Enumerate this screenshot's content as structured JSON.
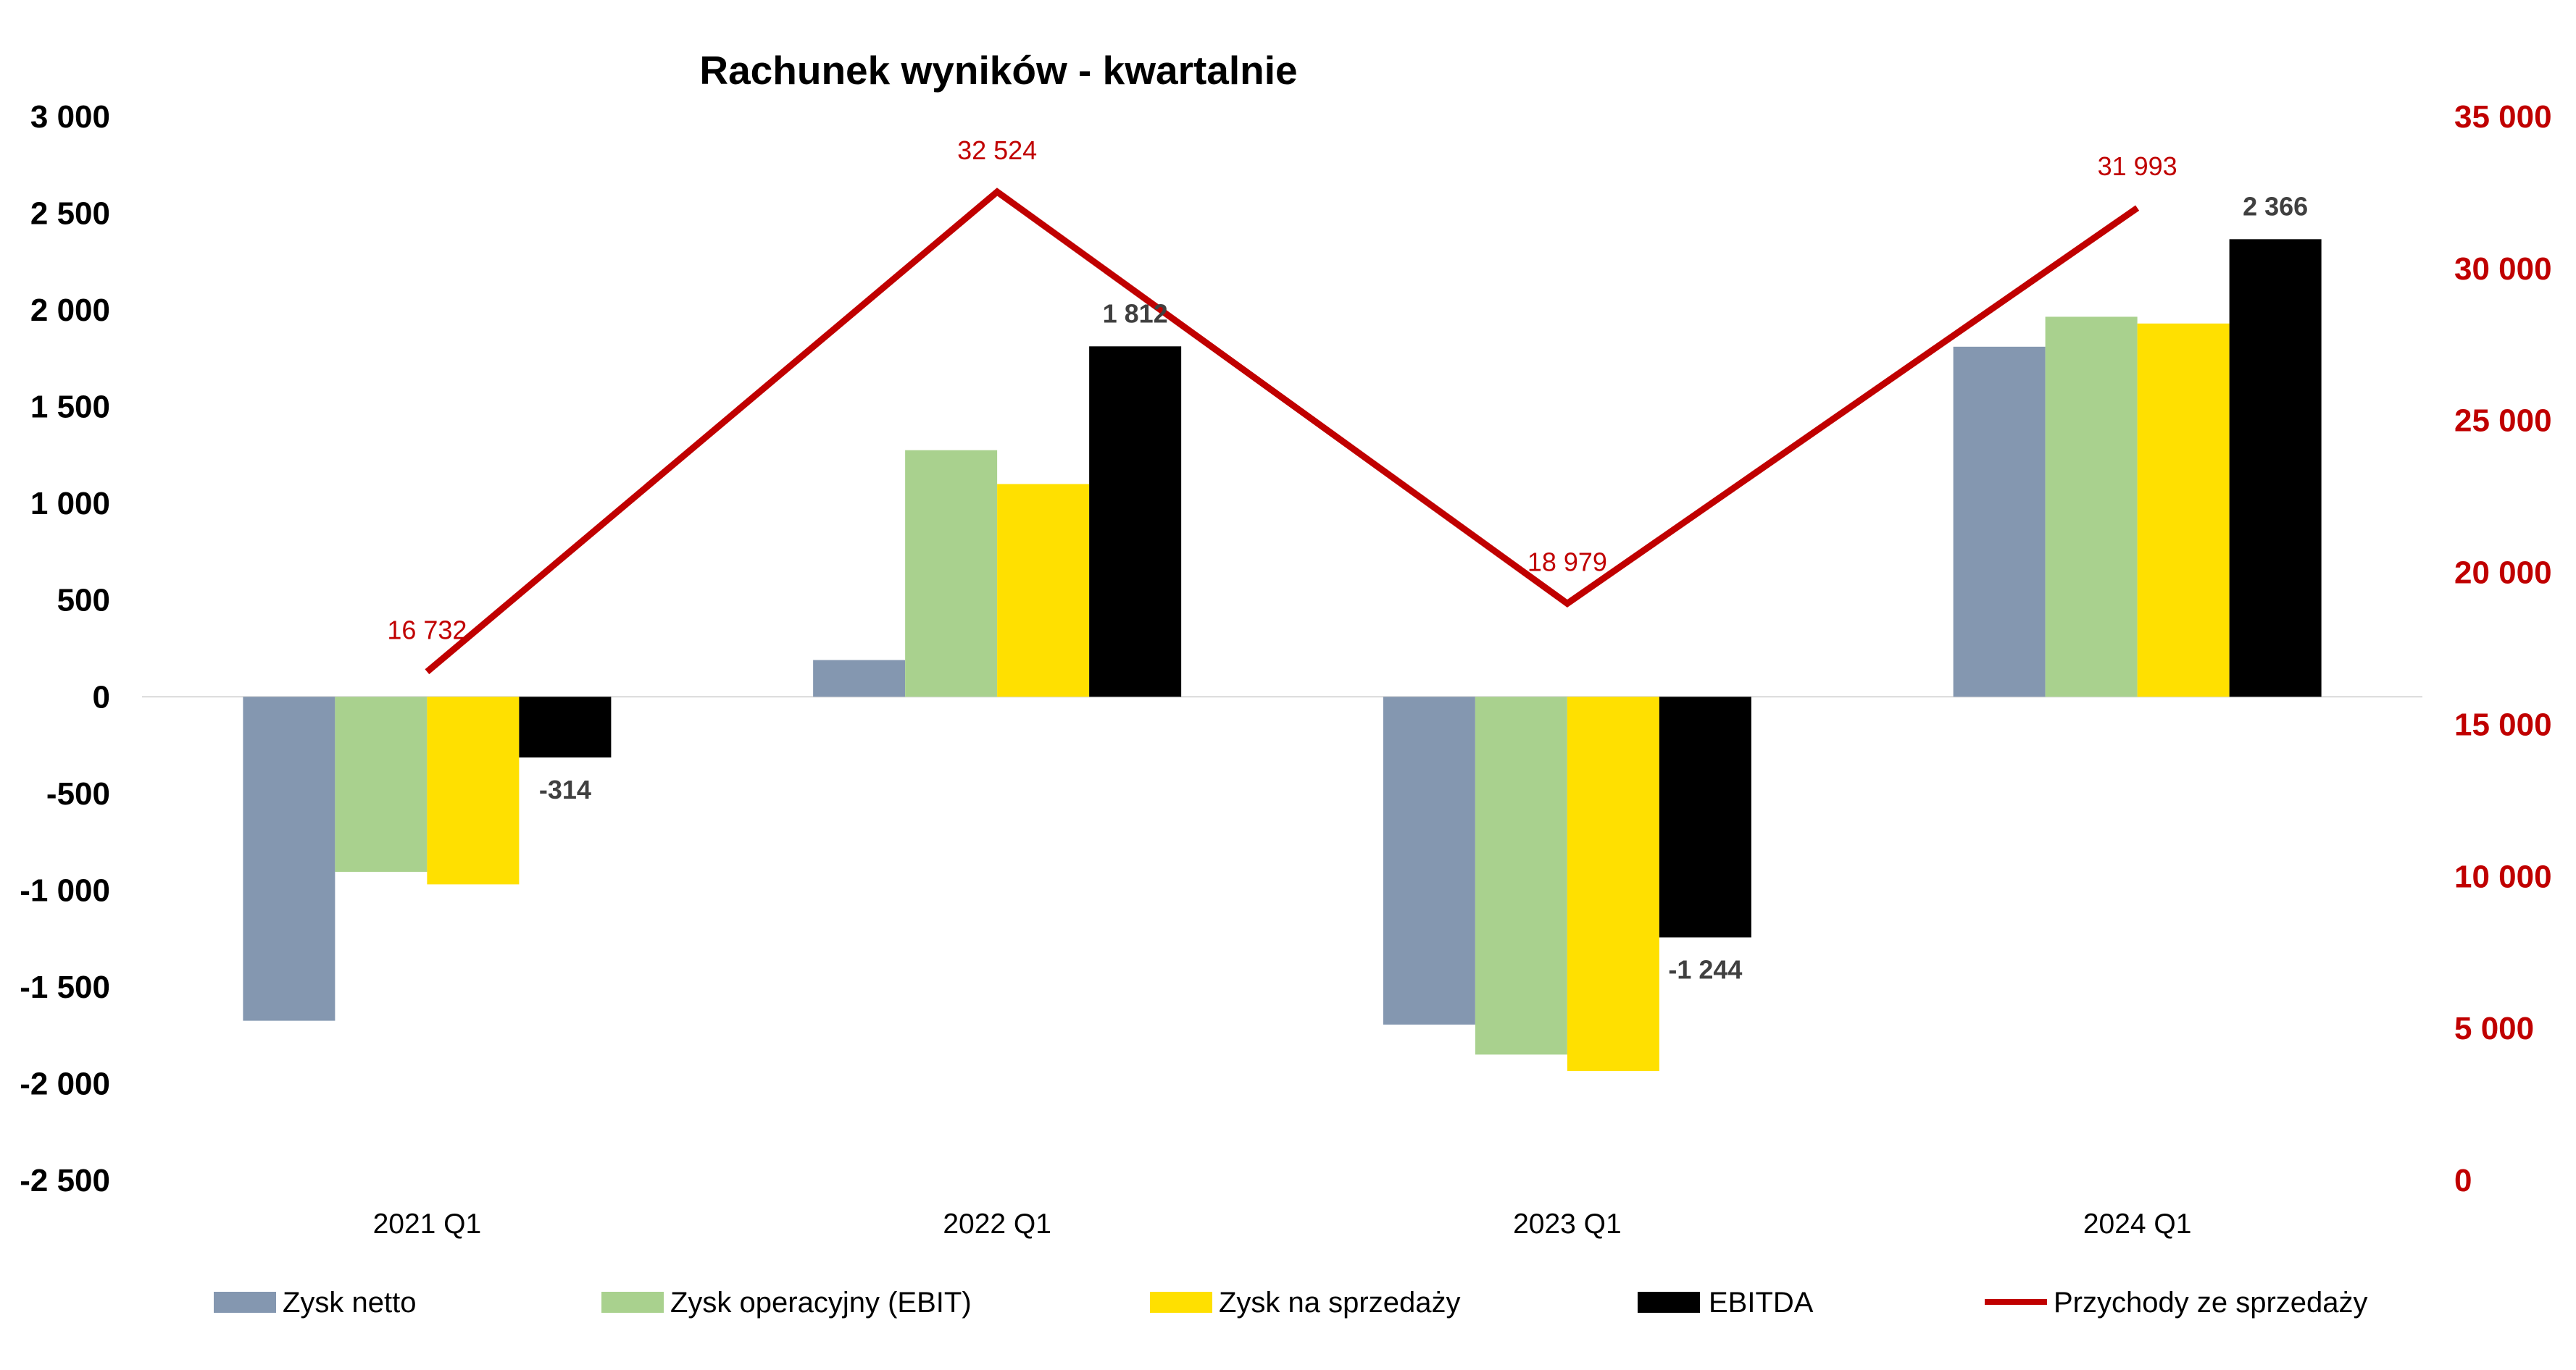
{
  "chart_data": {
    "type": "bar",
    "title": "Rachunek wyników - kwartalnie",
    "categories": [
      "2021 Q1",
      "2022 Q1",
      "2023 Q1",
      "2024 Q1"
    ],
    "series": [
      {
        "name": "Zysk netto",
        "type": "bar",
        "axis": "left",
        "color": "#8497B0",
        "values": [
          -1675,
          190,
          -1695,
          1810
        ]
      },
      {
        "name": "Zysk operacyjny (EBIT)",
        "type": "bar",
        "axis": "left",
        "color": "#A9D18E",
        "values": [
          -905,
          1275,
          -1850,
          1965
        ]
      },
      {
        "name": "Zysk na sprzedaży",
        "type": "bar",
        "axis": "left",
        "color": "#FFE000",
        "values": [
          -970,
          1100,
          -1935,
          1930
        ]
      },
      {
        "name": "EBITDA",
        "type": "bar",
        "axis": "left",
        "color": "#000000",
        "label_color": "#404040",
        "values": [
          -314,
          1812,
          -1244,
          2366
        ],
        "data_labels": [
          "-314",
          "1 812",
          "-1 244",
          "2 366"
        ]
      },
      {
        "name": "Przychody ze sprzedaży",
        "type": "line",
        "axis": "right",
        "color": "#C00000",
        "label_color": "#C00000",
        "values": [
          16732,
          32524,
          18979,
          31993
        ],
        "data_labels": [
          "16 732",
          "32 524",
          "18 979",
          "31 993"
        ]
      }
    ],
    "y_axis_left": {
      "ylim": [
        -2500,
        3000
      ],
      "step": 500,
      "color": "#000000",
      "tick_labels": [
        "3 000",
        "2 500",
        "2 000",
        "1 500",
        "1 000",
        "500",
        "0",
        "-500",
        "-1 000",
        "-1 500",
        "-2 000",
        "-2 500"
      ]
    },
    "y_axis_right": {
      "ylim": [
        0,
        35000
      ],
      "step": 5000,
      "color": "#C00000",
      "tick_labels": [
        "35 000",
        "30 000",
        "25 000",
        "20 000",
        "15 000",
        "10 000",
        "5 000",
        "0"
      ]
    },
    "grid": false,
    "legend": "bottom"
  }
}
